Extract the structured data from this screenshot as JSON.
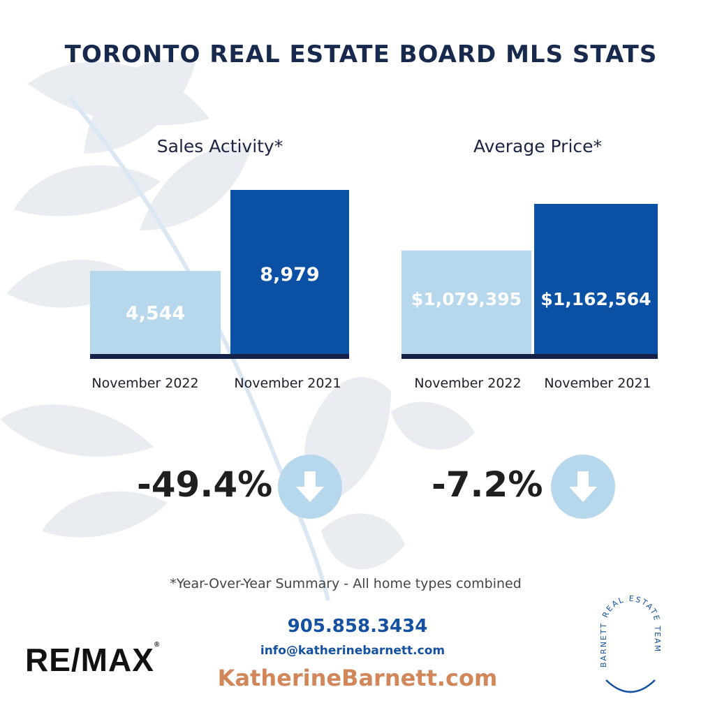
{
  "title": "TORONTO REAL ESTATE BOARD MLS STATS",
  "colors": {
    "light_bar": "#b7d7ec",
    "dark_bar": "#0a50a4",
    "baseline": "#14224a",
    "circle": "#b7d7ec"
  },
  "chart_data": [
    {
      "type": "bar",
      "title": "Sales Activity*",
      "categories": [
        "November 2022",
        "November 2021"
      ],
      "values": [
        4544,
        8979
      ],
      "value_labels": [
        "4,544",
        "8,979"
      ],
      "change": "-49.4%",
      "change_icon": "arrow-down-icon"
    },
    {
      "type": "bar",
      "title": "Average Price*",
      "categories": [
        "November 2022",
        "November 2021"
      ],
      "values": [
        1079395,
        1162564
      ],
      "value_labels": [
        "$1,079,395",
        "$1,162,564"
      ],
      "change": "-7.2%",
      "change_icon": "arrow-down-icon"
    }
  ],
  "footnote": "*Year-Over-Year Summary - All home types combined",
  "contact": {
    "phone": "905.858.3434",
    "email": "info@katherinebarnett.com",
    "website": "KatherineBarnett.com"
  },
  "branding": {
    "remax_logo": "RE/MAX",
    "team_logo": "BARNETT REAL ESTATE TEAM"
  }
}
